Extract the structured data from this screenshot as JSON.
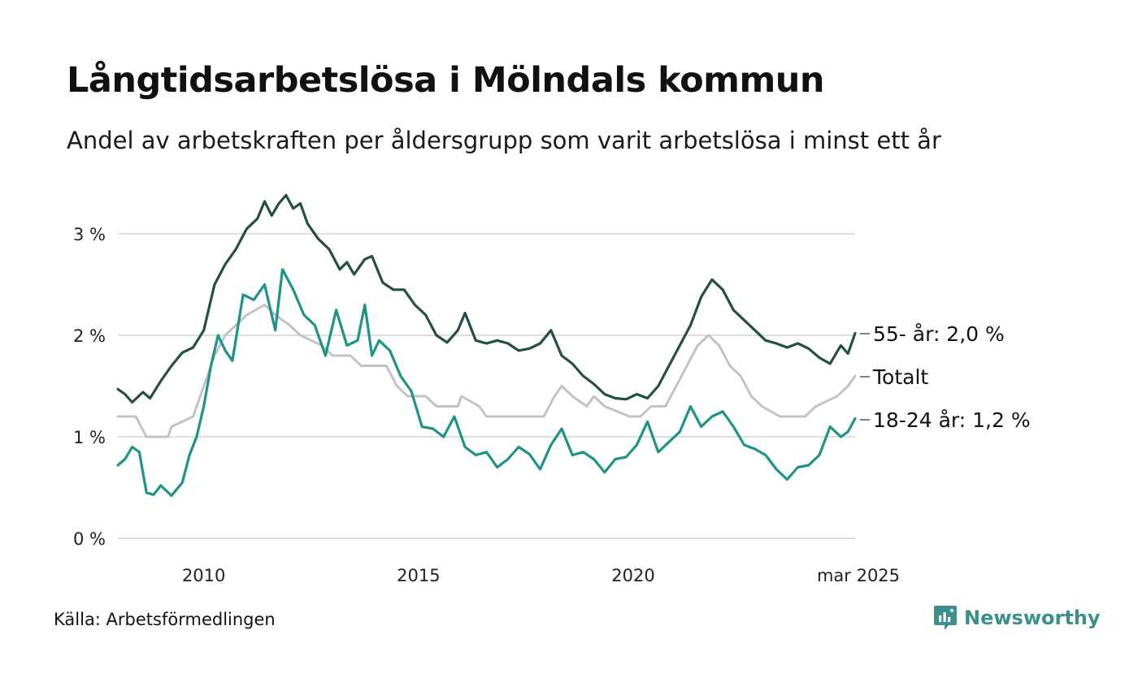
{
  "header": {
    "title": "Långtidsarbetslösa i Mölndals kommun",
    "subtitle": "Andel av arbetskraften per åldersgrupp som varit arbetslösa i minst ett år"
  },
  "footer": {
    "source": "Källa: Arbetsförmedlingen",
    "brand": "Newsworthy"
  },
  "colors": {
    "older": "#244f48",
    "young": "#1d9486",
    "total": "#c4c0cc",
    "grid": "#dedede",
    "brand": "#3c8f8a"
  },
  "chart_data": {
    "type": "line",
    "x_range": [
      "2008-01",
      "2025-03"
    ],
    "ylim": [
      0,
      3.3
    ],
    "y_ticks": [
      {
        "value": 0,
        "label": "0 %"
      },
      {
        "value": 1,
        "label": "1 %"
      },
      {
        "value": 2,
        "label": "2 %"
      },
      {
        "value": 3,
        "label": "3 %"
      }
    ],
    "x_ticks": [
      {
        "date": "2010-01",
        "label": "2010"
      },
      {
        "date": "2015-01",
        "label": "2015"
      },
      {
        "date": "2020-01",
        "label": "2020"
      },
      {
        "date": "2025-03",
        "label": "mar 2025"
      }
    ],
    "series": [
      {
        "name": "55- år",
        "label": "55- år: 2,0 %",
        "key": "older",
        "points": [
          [
            "2008-01",
            1.47
          ],
          [
            "2008-03",
            1.42
          ],
          [
            "2008-05",
            1.34
          ],
          [
            "2008-08",
            1.44
          ],
          [
            "2008-10",
            1.38
          ],
          [
            "2009-01",
            1.55
          ],
          [
            "2009-04",
            1.7
          ],
          [
            "2009-07",
            1.83
          ],
          [
            "2009-10",
            1.88
          ],
          [
            "2010-01",
            2.05
          ],
          [
            "2010-04",
            2.5
          ],
          [
            "2010-07",
            2.7
          ],
          [
            "2010-10",
            2.85
          ],
          [
            "2011-01",
            3.05
          ],
          [
            "2011-04",
            3.15
          ],
          [
            "2011-06",
            3.32
          ],
          [
            "2011-08",
            3.18
          ],
          [
            "2011-10",
            3.3
          ],
          [
            "2011-12",
            3.38
          ],
          [
            "2012-02",
            3.25
          ],
          [
            "2012-04",
            3.3
          ],
          [
            "2012-06",
            3.1
          ],
          [
            "2012-09",
            2.95
          ],
          [
            "2012-12",
            2.85
          ],
          [
            "2013-03",
            2.65
          ],
          [
            "2013-05",
            2.72
          ],
          [
            "2013-07",
            2.6
          ],
          [
            "2013-10",
            2.75
          ],
          [
            "2013-12",
            2.78
          ],
          [
            "2014-03",
            2.52
          ],
          [
            "2014-06",
            2.45
          ],
          [
            "2014-09",
            2.45
          ],
          [
            "2014-12",
            2.3
          ],
          [
            "2015-03",
            2.2
          ],
          [
            "2015-06",
            2.0
          ],
          [
            "2015-09",
            1.93
          ],
          [
            "2015-12",
            2.05
          ],
          [
            "2016-02",
            2.22
          ],
          [
            "2016-05",
            1.95
          ],
          [
            "2016-08",
            1.92
          ],
          [
            "2016-11",
            1.95
          ],
          [
            "2017-02",
            1.92
          ],
          [
            "2017-05",
            1.85
          ],
          [
            "2017-08",
            1.87
          ],
          [
            "2017-11",
            1.92
          ],
          [
            "2018-02",
            2.05
          ],
          [
            "2018-05",
            1.8
          ],
          [
            "2018-08",
            1.72
          ],
          [
            "2018-11",
            1.6
          ],
          [
            "2019-02",
            1.52
          ],
          [
            "2019-05",
            1.42
          ],
          [
            "2019-08",
            1.38
          ],
          [
            "2019-11",
            1.37
          ],
          [
            "2020-02",
            1.42
          ],
          [
            "2020-05",
            1.38
          ],
          [
            "2020-08",
            1.5
          ],
          [
            "2020-11",
            1.7
          ],
          [
            "2021-02",
            1.9
          ],
          [
            "2021-05",
            2.1
          ],
          [
            "2021-08",
            2.38
          ],
          [
            "2021-11",
            2.55
          ],
          [
            "2022-02",
            2.45
          ],
          [
            "2022-05",
            2.25
          ],
          [
            "2022-08",
            2.15
          ],
          [
            "2022-11",
            2.05
          ],
          [
            "2023-02",
            1.95
          ],
          [
            "2023-05",
            1.92
          ],
          [
            "2023-08",
            1.88
          ],
          [
            "2023-11",
            1.92
          ],
          [
            "2024-02",
            1.87
          ],
          [
            "2024-05",
            1.78
          ],
          [
            "2024-08",
            1.72
          ],
          [
            "2024-11",
            1.9
          ],
          [
            "2025-01",
            1.82
          ],
          [
            "2025-03",
            2.02
          ]
        ]
      },
      {
        "name": "Totalt",
        "label": "Totalt",
        "key": "total",
        "points": [
          [
            "2008-01",
            1.2
          ],
          [
            "2008-06",
            1.2
          ],
          [
            "2008-09",
            1.0
          ],
          [
            "2009-03",
            1.0
          ],
          [
            "2009-04",
            1.1
          ],
          [
            "2009-10",
            1.2
          ],
          [
            "2010-01",
            1.5
          ],
          [
            "2010-04",
            1.8
          ],
          [
            "2010-07",
            2.0
          ],
          [
            "2010-10",
            2.1
          ],
          [
            "2011-01",
            2.2
          ],
          [
            "2011-06",
            2.3
          ],
          [
            "2011-09",
            2.2
          ],
          [
            "2012-01",
            2.1
          ],
          [
            "2012-04",
            2.0
          ],
          [
            "2012-10",
            1.9
          ],
          [
            "2013-01",
            1.8
          ],
          [
            "2013-06",
            1.8
          ],
          [
            "2013-09",
            1.7
          ],
          [
            "2014-04",
            1.7
          ],
          [
            "2014-07",
            1.5
          ],
          [
            "2014-10",
            1.4
          ],
          [
            "2015-03",
            1.4
          ],
          [
            "2015-06",
            1.3
          ],
          [
            "2015-12",
            1.3
          ],
          [
            "2016-01",
            1.4
          ],
          [
            "2016-06",
            1.3
          ],
          [
            "2016-08",
            1.2
          ],
          [
            "2017-06",
            1.2
          ],
          [
            "2017-12",
            1.2
          ],
          [
            "2018-03",
            1.4
          ],
          [
            "2018-05",
            1.5
          ],
          [
            "2018-08",
            1.4
          ],
          [
            "2018-12",
            1.3
          ],
          [
            "2019-02",
            1.4
          ],
          [
            "2019-05",
            1.3
          ],
          [
            "2019-12",
            1.2
          ],
          [
            "2020-03",
            1.2
          ],
          [
            "2020-06",
            1.3
          ],
          [
            "2020-10",
            1.3
          ],
          [
            "2021-01",
            1.5
          ],
          [
            "2021-04",
            1.7
          ],
          [
            "2021-07",
            1.9
          ],
          [
            "2021-10",
            2.0
          ],
          [
            "2022-01",
            1.9
          ],
          [
            "2022-04",
            1.7
          ],
          [
            "2022-07",
            1.6
          ],
          [
            "2022-10",
            1.4
          ],
          [
            "2023-01",
            1.3
          ],
          [
            "2023-06",
            1.2
          ],
          [
            "2024-01",
            1.2
          ],
          [
            "2024-04",
            1.3
          ],
          [
            "2024-10",
            1.4
          ],
          [
            "2025-01",
            1.5
          ],
          [
            "2025-03",
            1.6
          ]
        ]
      },
      {
        "name": "18-24 år",
        "label": "18-24 år: 1,2 %",
        "key": "young",
        "points": [
          [
            "2008-01",
            0.72
          ],
          [
            "2008-03",
            0.78
          ],
          [
            "2008-05",
            0.9
          ],
          [
            "2008-07",
            0.85
          ],
          [
            "2008-09",
            0.45
          ],
          [
            "2008-11",
            0.43
          ],
          [
            "2009-01",
            0.52
          ],
          [
            "2009-04",
            0.42
          ],
          [
            "2009-07",
            0.55
          ],
          [
            "2009-09",
            0.82
          ],
          [
            "2009-11",
            1.0
          ],
          [
            "2010-01",
            1.3
          ],
          [
            "2010-03",
            1.7
          ],
          [
            "2010-05",
            2.0
          ],
          [
            "2010-07",
            1.85
          ],
          [
            "2010-09",
            1.75
          ],
          [
            "2010-12",
            2.4
          ],
          [
            "2011-03",
            2.35
          ],
          [
            "2011-06",
            2.5
          ],
          [
            "2011-09",
            2.05
          ],
          [
            "2011-11",
            2.65
          ],
          [
            "2012-02",
            2.45
          ],
          [
            "2012-05",
            2.2
          ],
          [
            "2012-08",
            2.1
          ],
          [
            "2012-11",
            1.8
          ],
          [
            "2013-02",
            2.25
          ],
          [
            "2013-05",
            1.9
          ],
          [
            "2013-08",
            1.95
          ],
          [
            "2013-10",
            2.3
          ],
          [
            "2013-12",
            1.8
          ],
          [
            "2014-02",
            1.95
          ],
          [
            "2014-05",
            1.85
          ],
          [
            "2014-08",
            1.6
          ],
          [
            "2014-11",
            1.45
          ],
          [
            "2015-02",
            1.1
          ],
          [
            "2015-05",
            1.08
          ],
          [
            "2015-08",
            1.0
          ],
          [
            "2015-11",
            1.2
          ],
          [
            "2016-02",
            0.9
          ],
          [
            "2016-05",
            0.82
          ],
          [
            "2016-08",
            0.85
          ],
          [
            "2016-11",
            0.7
          ],
          [
            "2017-02",
            0.78
          ],
          [
            "2017-05",
            0.9
          ],
          [
            "2017-08",
            0.83
          ],
          [
            "2017-11",
            0.68
          ],
          [
            "2018-02",
            0.92
          ],
          [
            "2018-05",
            1.08
          ],
          [
            "2018-08",
            0.82
          ],
          [
            "2018-11",
            0.85
          ],
          [
            "2019-02",
            0.78
          ],
          [
            "2019-05",
            0.65
          ],
          [
            "2019-08",
            0.78
          ],
          [
            "2019-11",
            0.8
          ],
          [
            "2020-02",
            0.92
          ],
          [
            "2020-05",
            1.15
          ],
          [
            "2020-08",
            0.85
          ],
          [
            "2020-11",
            0.95
          ],
          [
            "2021-02",
            1.05
          ],
          [
            "2021-05",
            1.3
          ],
          [
            "2021-08",
            1.1
          ],
          [
            "2021-11",
            1.2
          ],
          [
            "2022-02",
            1.25
          ],
          [
            "2022-05",
            1.1
          ],
          [
            "2022-08",
            0.92
          ],
          [
            "2022-11",
            0.88
          ],
          [
            "2023-02",
            0.82
          ],
          [
            "2023-05",
            0.68
          ],
          [
            "2023-08",
            0.58
          ],
          [
            "2023-11",
            0.7
          ],
          [
            "2024-02",
            0.72
          ],
          [
            "2024-05",
            0.82
          ],
          [
            "2024-08",
            1.1
          ],
          [
            "2024-11",
            1.0
          ],
          [
            "2025-01",
            1.05
          ],
          [
            "2025-03",
            1.18
          ]
        ]
      }
    ]
  }
}
